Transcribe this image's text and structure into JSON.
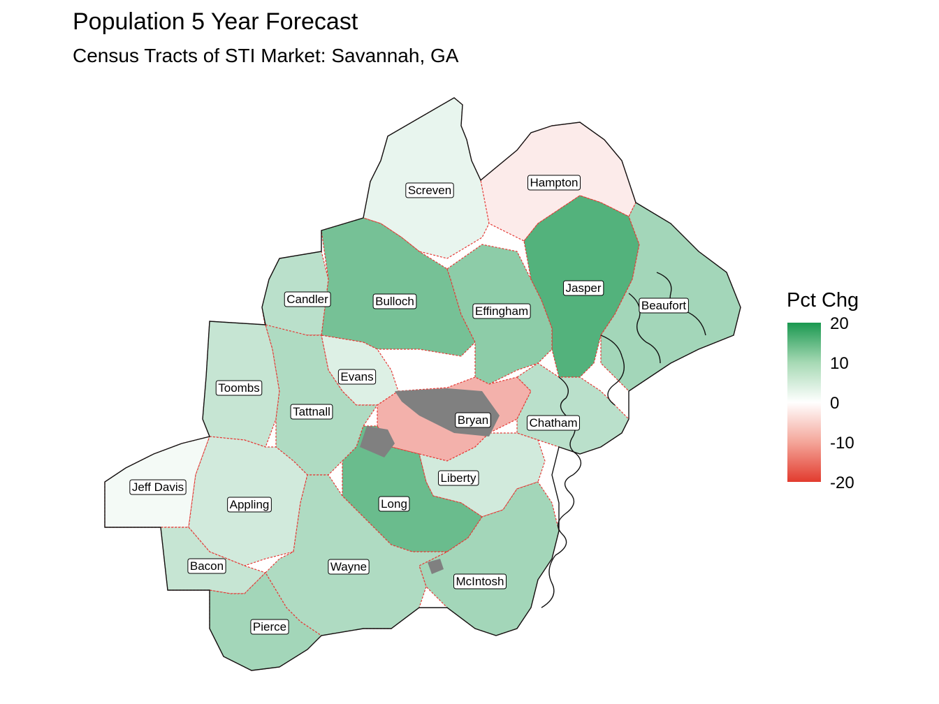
{
  "title": "Population 5 Year Forecast",
  "subtitle": "Census Tracts of STI Market: Savannah, GA",
  "legend": {
    "title": "Pct Chg",
    "ticks": [
      "20",
      "10",
      "0",
      "-10",
      "-20"
    ],
    "colors": {
      "high": "#1a9850",
      "mid": "#ffffff",
      "low": "#e23b2e",
      "missing": "#808080"
    }
  },
  "counties": [
    {
      "name": "Screven",
      "pct_chg": 2
    },
    {
      "name": "Hampton",
      "pct_chg": -2
    },
    {
      "name": "Candler",
      "pct_chg": 6
    },
    {
      "name": "Bulloch",
      "pct_chg": 12
    },
    {
      "name": "Effingham",
      "pct_chg": 10
    },
    {
      "name": "Jasper",
      "pct_chg": 15
    },
    {
      "name": "Beaufort",
      "pct_chg": 8
    },
    {
      "name": "Toombs",
      "pct_chg": 5
    },
    {
      "name": "Evans",
      "pct_chg": 3
    },
    {
      "name": "Tattnall",
      "pct_chg": 7
    },
    {
      "name": "Bryan",
      "pct_chg": -8
    },
    {
      "name": "Chatham",
      "pct_chg": 6
    },
    {
      "name": "Liberty",
      "pct_chg": 4
    },
    {
      "name": "Long",
      "pct_chg": 13
    },
    {
      "name": "Jeff Davis",
      "pct_chg": 1
    },
    {
      "name": "Appling",
      "pct_chg": 4
    },
    {
      "name": "Bacon",
      "pct_chg": 5
    },
    {
      "name": "Wayne",
      "pct_chg": 7
    },
    {
      "name": "McIntosh",
      "pct_chg": 8
    },
    {
      "name": "Pierce",
      "pct_chg": 8
    }
  ]
}
